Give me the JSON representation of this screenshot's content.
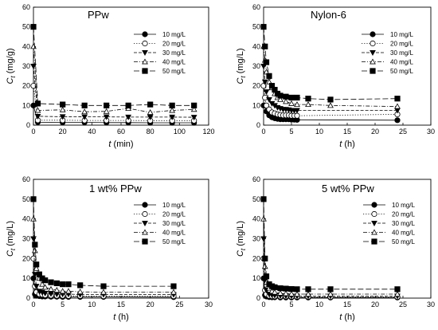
{
  "chart_data": [
    {
      "type": "line",
      "title": "PPw",
      "xlabel": "t (min)",
      "ylabel": "Ct (mg/g)",
      "xlim": [
        0,
        120
      ],
      "ylim": [
        0,
        60
      ],
      "xticks": [
        0,
        20,
        40,
        60,
        80,
        100,
        120
      ],
      "yticks": [
        0,
        10,
        20,
        30,
        40,
        50,
        60
      ],
      "grid": false,
      "legend": "top-right",
      "series": [
        {
          "name": "10 mg/L",
          "marker": "circle-filled",
          "line": "solid",
          "x": [
            0,
            3,
            20,
            35,
            50,
            65,
            80,
            95,
            110
          ],
          "y": [
            10,
            1.5,
            1.4,
            1.4,
            1.3,
            1.3,
            1.2,
            1.2,
            1.2
          ]
        },
        {
          "name": "20 mg/L",
          "marker": "circle-open",
          "line": "dotted",
          "x": [
            0,
            3,
            20,
            35,
            50,
            65,
            80,
            95,
            110
          ],
          "y": [
            20,
            2.5,
            2.5,
            2.4,
            2.4,
            2.4,
            2.3,
            2.3,
            2.3
          ]
        },
        {
          "name": "30 mg/L",
          "marker": "triangle-down-filled",
          "line": "dashed",
          "x": [
            0,
            3,
            20,
            35,
            50,
            65,
            80,
            95,
            110
          ],
          "y": [
            30,
            4.5,
            4.3,
            4.2,
            4.2,
            4.1,
            4.1,
            4.1,
            4.0
          ]
        },
        {
          "name": "40 mg/L",
          "marker": "triangle-up-open",
          "line": "dashdot",
          "x": [
            0,
            3,
            20,
            35,
            50,
            65,
            80,
            95,
            110
          ],
          "y": [
            40,
            7.5,
            7.8,
            6.8,
            7.0,
            8.5,
            6.5,
            7.5,
            8.0
          ]
        },
        {
          "name": "50 mg/L",
          "marker": "square-filled",
          "line": "longdash",
          "x": [
            0,
            3,
            20,
            35,
            50,
            65,
            80,
            95,
            110
          ],
          "y": [
            50,
            11,
            10.5,
            10,
            10,
            10,
            10.5,
            10,
            10
          ]
        }
      ]
    },
    {
      "type": "line",
      "title": "Nylon-6",
      "xlabel": "t (h)",
      "ylabel": "Ct (mg/L)",
      "xlim": [
        0,
        30
      ],
      "ylim": [
        0,
        60
      ],
      "xticks": [
        0,
        5,
        10,
        15,
        20,
        25,
        30
      ],
      "yticks": [
        0,
        10,
        20,
        30,
        40,
        50,
        60
      ],
      "grid": false,
      "legend": "top-right",
      "series": [
        {
          "name": "10 mg/L",
          "marker": "circle-filled",
          "line": "solid",
          "x": [
            0,
            0.25,
            0.5,
            1,
            1.5,
            2,
            2.5,
            3,
            3.5,
            4,
            4.5,
            5,
            5.5,
            6,
            24
          ],
          "y": [
            10,
            10,
            7,
            5,
            4,
            3.5,
            3.2,
            3,
            3,
            3,
            3,
            2.8,
            2.8,
            2.7,
            2.5
          ]
        },
        {
          "name": "20 mg/L",
          "marker": "circle-open",
          "line": "dotted",
          "x": [
            0,
            0.25,
            0.5,
            1,
            1.5,
            2,
            2.5,
            3,
            3.5,
            4,
            4.5,
            5,
            5.5,
            6,
            24
          ],
          "y": [
            20,
            14,
            10,
            8,
            6.5,
            6,
            5.5,
            5.2,
            5,
            5,
            5,
            4.8,
            4.8,
            4.8,
            5.5
          ]
        },
        {
          "name": "30 mg/L",
          "marker": "triangle-down-filled",
          "line": "dashed",
          "x": [
            0,
            0.25,
            0.5,
            1,
            1.5,
            2,
            2.5,
            3,
            3.5,
            4,
            4.5,
            5,
            5.5,
            6,
            24
          ],
          "y": [
            30,
            22,
            17,
            13,
            11,
            10,
            9,
            8.5,
            8,
            8,
            7.8,
            7.5,
            7.5,
            7.5,
            7.5
          ]
        },
        {
          "name": "40 mg/L",
          "marker": "triangle-up-open",
          "line": "dashdot",
          "x": [
            0,
            0.25,
            0.5,
            1,
            1.5,
            2,
            2.5,
            3,
            4,
            5,
            6,
            8,
            12,
            24
          ],
          "y": [
            40,
            33,
            27,
            22,
            19,
            16,
            14,
            13,
            12,
            11,
            10.5,
            10.5,
            10,
            9.5
          ]
        },
        {
          "name": "50 mg/L",
          "marker": "square-filled",
          "line": "longdash",
          "x": [
            0,
            0.25,
            0.5,
            1,
            1.5,
            2,
            2.5,
            3,
            4,
            5,
            6,
            8,
            12,
            24
          ],
          "y": [
            50,
            40,
            32,
            25,
            20,
            18,
            16,
            15,
            14.5,
            14,
            14,
            13.5,
            13,
            13.5
          ]
        }
      ]
    },
    {
      "type": "line",
      "title": "1 wt% PPw",
      "xlabel": "t (h)",
      "ylabel": "Ct (mg/L)",
      "xlim": [
        0,
        30
      ],
      "ylim": [
        0,
        60
      ],
      "xticks": [
        0,
        5,
        10,
        15,
        20,
        25,
        30
      ],
      "yticks": [
        0,
        10,
        20,
        30,
        40,
        50,
        60
      ],
      "grid": false,
      "legend": "top-right",
      "series": [
        {
          "name": "10 mg/L",
          "marker": "circle-filled",
          "line": "solid",
          "x": [
            0,
            0.25,
            0.5,
            1,
            1.5,
            2,
            3,
            4,
            5,
            6,
            8,
            12,
            24
          ],
          "y": [
            10,
            2,
            1.2,
            1,
            0.8,
            0.8,
            0.7,
            0.7,
            0.6,
            0.6,
            0.6,
            0.6,
            0.5
          ]
        },
        {
          "name": "20 mg/L",
          "marker": "circle-open",
          "line": "dotted",
          "x": [
            0,
            0.25,
            0.5,
            1,
            1.5,
            2,
            3,
            4,
            5,
            6,
            8,
            12,
            24
          ],
          "y": [
            20,
            6,
            3,
            2,
            1.8,
            1.5,
            1.3,
            1.2,
            1.2,
            1.1,
            1.1,
            1,
            1
          ]
        },
        {
          "name": "30 mg/L",
          "marker": "triangle-down-filled",
          "line": "dashed",
          "x": [
            0,
            0.25,
            0.5,
            1,
            1.5,
            2,
            3,
            4,
            5,
            6,
            8,
            12,
            24
          ],
          "y": [
            30,
            12,
            6,
            3.5,
            3,
            2.5,
            2.2,
            2,
            2,
            2,
            1.8,
            1.8,
            1.8
          ]
        },
        {
          "name": "40 mg/L",
          "marker": "triangle-up-open",
          "line": "dashdot",
          "x": [
            0,
            0.25,
            0.5,
            1,
            1.5,
            2,
            3,
            4,
            5,
            6,
            8,
            12,
            24
          ],
          "y": [
            40,
            24,
            15,
            10,
            7,
            5.5,
            4.5,
            4,
            3.5,
            3.5,
            3.2,
            3,
            3
          ]
        },
        {
          "name": "50 mg/L",
          "marker": "square-filled",
          "line": "longdash",
          "x": [
            0,
            0.25,
            0.5,
            1,
            1.5,
            2,
            3,
            4,
            5,
            6,
            8,
            12,
            24
          ],
          "y": [
            50,
            27,
            17,
            12,
            10,
            9,
            8,
            7.5,
            7,
            7,
            6.5,
            6,
            6
          ]
        }
      ]
    },
    {
      "type": "line",
      "title": "5 wt% PPw",
      "xlabel": "t (h)",
      "ylabel": "Ct (mg/L)",
      "xlim": [
        0,
        30
      ],
      "ylim": [
        0,
        60
      ],
      "xticks": [
        0,
        5,
        10,
        15,
        20,
        25,
        30
      ],
      "yticks": [
        0,
        10,
        20,
        30,
        40,
        50,
        60
      ],
      "grid": false,
      "legend": "top-right",
      "series": [
        {
          "name": "10 mg/L",
          "marker": "circle-filled",
          "line": "solid",
          "x": [
            0,
            0.25,
            0.5,
            1,
            1.5,
            2,
            3,
            4,
            5,
            6,
            8,
            12,
            24
          ],
          "y": [
            10,
            1.5,
            0.8,
            0.5,
            0.4,
            0.4,
            0.3,
            0.3,
            0.3,
            0.3,
            0.3,
            0.3,
            0.3
          ]
        },
        {
          "name": "20 mg/L",
          "marker": "circle-open",
          "line": "dotted",
          "x": [
            0,
            0.25,
            0.5,
            1,
            1.5,
            2,
            3,
            4,
            5,
            6,
            8,
            12,
            24
          ],
          "y": [
            20,
            4,
            2,
            1.2,
            1,
            0.9,
            0.8,
            0.8,
            0.7,
            0.7,
            0.7,
            0.6,
            0.6
          ]
        },
        {
          "name": "30 mg/L",
          "marker": "triangle-down-filled",
          "line": "dashed",
          "x": [
            0,
            0.25,
            0.5,
            1,
            1.5,
            2,
            3,
            4,
            5,
            6,
            8,
            12,
            24
          ],
          "y": [
            30,
            9,
            4,
            2,
            1.6,
            1.4,
            1.2,
            1.1,
            1,
            1,
            1,
            1,
            1
          ]
        },
        {
          "name": "40 mg/L",
          "marker": "triangle-up-open",
          "line": "dashdot",
          "x": [
            0,
            0.25,
            0.5,
            1,
            1.5,
            2,
            3,
            4,
            5,
            6,
            8,
            12,
            24
          ],
          "y": [
            40,
            16,
            8,
            5,
            3.5,
            3,
            2.5,
            2.3,
            2.1,
            2,
            2,
            2,
            2
          ]
        },
        {
          "name": "50 mg/L",
          "marker": "square-filled",
          "line": "longdash",
          "x": [
            0,
            0.25,
            0.5,
            1,
            1.5,
            2,
            3,
            4,
            5,
            6,
            8,
            12,
            24
          ],
          "y": [
            50,
            20,
            11,
            7,
            6,
            5.5,
            5,
            4.8,
            4.6,
            4.5,
            4.5,
            4.5,
            4.5
          ]
        }
      ]
    }
  ]
}
